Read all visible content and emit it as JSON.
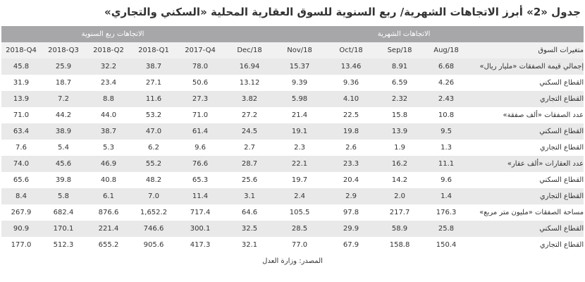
{
  "title": "جدول «2» أبرز الاتجاهات الشهرية/ ربع السنوية للسوق العقارية المحلية «السكني والتجاري»",
  "groups": {
    "quarterly": "الاتجاهات ربع السنوية",
    "monthly": "الاتجاهات الشهرية"
  },
  "columns": [
    "2018-Q4",
    "2018-Q3",
    "2018-Q2",
    "2018-Q1",
    "2017-Q4",
    "Dec/18",
    "Nov/18",
    "Oct/18",
    "Sep/18",
    "Aug/18"
  ],
  "label_header": "متغيرات السوق",
  "rows": [
    {
      "label": "إجمالي قيمة الصفقات «مليار ريال»",
      "values": [
        "45.8",
        "25.9",
        "32.2",
        "38.7",
        "78.0",
        "16.94",
        "15.37",
        "13.46",
        "8.91",
        "6.68"
      ]
    },
    {
      "label": "القطاع السكني",
      "values": [
        "31.9",
        "18.7",
        "23.4",
        "27.1",
        "50.6",
        "13.12",
        "9.39",
        "9.36",
        "6.59",
        "4.26"
      ]
    },
    {
      "label": "القطاع التجاري",
      "values": [
        "13.9",
        "7.2",
        "8.8",
        "11.6",
        "27.3",
        "3.82",
        "5.98",
        "4.10",
        "2.32",
        "2.43"
      ]
    },
    {
      "label": "عدد الصفقات «ألف صفقة»",
      "values": [
        "71.0",
        "44.2",
        "44.0",
        "53.2",
        "71.0",
        "27.2",
        "21.4",
        "22.5",
        "15.8",
        "10.8"
      ]
    },
    {
      "label": "القطاع السكني",
      "values": [
        "63.4",
        "38.9",
        "38.7",
        "47.0",
        "61.4",
        "24.5",
        "19.1",
        "19.8",
        "13.9",
        "9.5"
      ]
    },
    {
      "label": "القطاع التجاري",
      "values": [
        "7.6",
        "5.4",
        "5.3",
        "6.2",
        "9.6",
        "2.7",
        "2.3",
        "2.6",
        "1.9",
        "1.3"
      ]
    },
    {
      "label": "عدد العقارات «ألف عقار»",
      "values": [
        "74.0",
        "45.6",
        "46.9",
        "55.2",
        "76.6",
        "28.7",
        "22.1",
        "23.3",
        "16.2",
        "11.1"
      ]
    },
    {
      "label": "القطاع السكني",
      "values": [
        "65.6",
        "39.8",
        "40.8",
        "48.2",
        "65.3",
        "25.6",
        "19.7",
        "20.4",
        "14.2",
        "9.6"
      ]
    },
    {
      "label": "القطاع التجاري",
      "values": [
        "8.4",
        "5.8",
        "6.1",
        "7.0",
        "11.4",
        "3.1",
        "2.4",
        "2.9",
        "2.0",
        "1.4"
      ]
    },
    {
      "label": "مساحة الصفقات «مليون متر مربع»",
      "values": [
        "267.9",
        "682.4",
        "876.6",
        "1,652.2",
        "717.4",
        "64.6",
        "105.5",
        "97.8",
        "217.7",
        "176.3"
      ]
    },
    {
      "label": "القطاع السكني",
      "values": [
        "90.9",
        "170.1",
        "221.4",
        "746.6",
        "300.1",
        "32.5",
        "28.5",
        "29.9",
        "58.9",
        "25.8"
      ]
    },
    {
      "label": "القطاع التجاري",
      "values": [
        "177.0",
        "512.3",
        "655.2",
        "905.6",
        "417.3",
        "32.1",
        "77.0",
        "67.9",
        "158.8",
        "150.4"
      ]
    }
  ],
  "source": "المصدر: وزارة العدل"
}
